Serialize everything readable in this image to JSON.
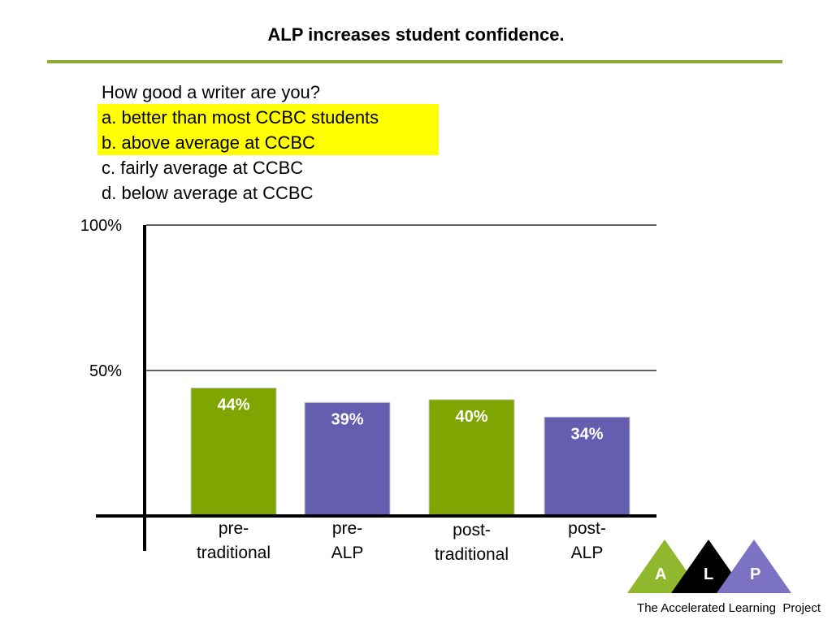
{
  "slide": {
    "title": "ALP increases student confidence.",
    "question": "How good a writer are you?",
    "options": [
      "a. better than most CCBC students",
      "b. above average at CCBC",
      "c. fairly average at CCBC",
      "d. below average at CCBC"
    ],
    "highlighted_options": [
      "a",
      "b"
    ],
    "highlight_color": "#ffff00",
    "rule_color": "#8aac34"
  },
  "chart_data": {
    "type": "bar",
    "title": "",
    "xlabel": "",
    "ylabel": "",
    "ylim": [
      0,
      100
    ],
    "y_ticks": [
      {
        "value": 100,
        "label": "100%"
      },
      {
        "value": 50,
        "label": "50%"
      }
    ],
    "grid": true,
    "categories": [
      [
        "pre-",
        "traditional"
      ],
      [
        "pre-",
        "ALP"
      ],
      [
        "post-",
        "traditional"
      ],
      [
        "post-",
        "ALP"
      ]
    ],
    "values": [
      44,
      39,
      40,
      34
    ],
    "value_labels": [
      "44%",
      "39%",
      "40%",
      "34%"
    ],
    "colors": [
      "#7fa500",
      "#655db0",
      "#7fa500",
      "#655db0"
    ]
  },
  "logo": {
    "letters": [
      "A",
      "L",
      "P"
    ],
    "colors": [
      "#8fb82e",
      "#000000",
      "#7b72c4"
    ]
  },
  "footer": {
    "text": "The Accelerated Learning  Project"
  }
}
